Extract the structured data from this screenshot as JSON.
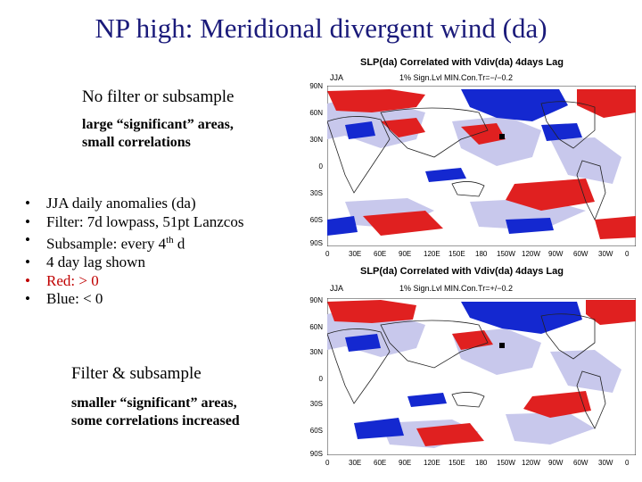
{
  "slide": {
    "title": "NP high: Meridional divergent wind (da)",
    "top_heading": "No filter or subsample",
    "top_note_1": "large “significant” areas,",
    "top_note_2": "small correlations",
    "bullets": [
      {
        "text": "JJA daily anomalies (da)",
        "color": "#000000"
      },
      {
        "text": "Filter: 7d lowpass, 51pt Lanzcos",
        "color": "#000000"
      },
      {
        "text": "Subsample: every 4",
        "sup": "th",
        "tail": " d",
        "color": "#000000"
      },
      {
        "text": "4 day lag shown",
        "color": "#000000"
      },
      {
        "text": "Red: > 0",
        "color": "#c00000"
      },
      {
        "text": "Blue: < 0",
        "color": "#000000"
      }
    ],
    "bottom_heading": "Filter & subsample",
    "bottom_note_1": "smaller “significant” areas,",
    "bottom_note_2": "some correlations increased"
  },
  "maps": {
    "top": {
      "title": "SLP(da) Correlated with Vdiv(da) 4days Lag",
      "season": "JJA",
      "sig": "1% Sign.Lvl  MIN.Con.Tr=−/−0.2"
    },
    "bottom": {
      "title": "SLP(da) Correlated with Vdiv(da) 4days Lag",
      "season": "JJA",
      "sig": "1% Sign.Lvl  MIN.Con.Tr=+/−0.2"
    },
    "lat_labels": [
      "90N",
      "60N",
      "30N",
      "0",
      "30S",
      "60S",
      "90S"
    ],
    "lon_labels": [
      "0",
      "30E",
      "60E",
      "90E",
      "120E",
      "150E",
      "180",
      "150W",
      "120W",
      "90W",
      "60W",
      "30W",
      "0"
    ],
    "colors": {
      "positive": "#e02020",
      "negative": "#1428d0",
      "significant_shade": "#c8c8ec",
      "land_outline": "#222222"
    }
  }
}
